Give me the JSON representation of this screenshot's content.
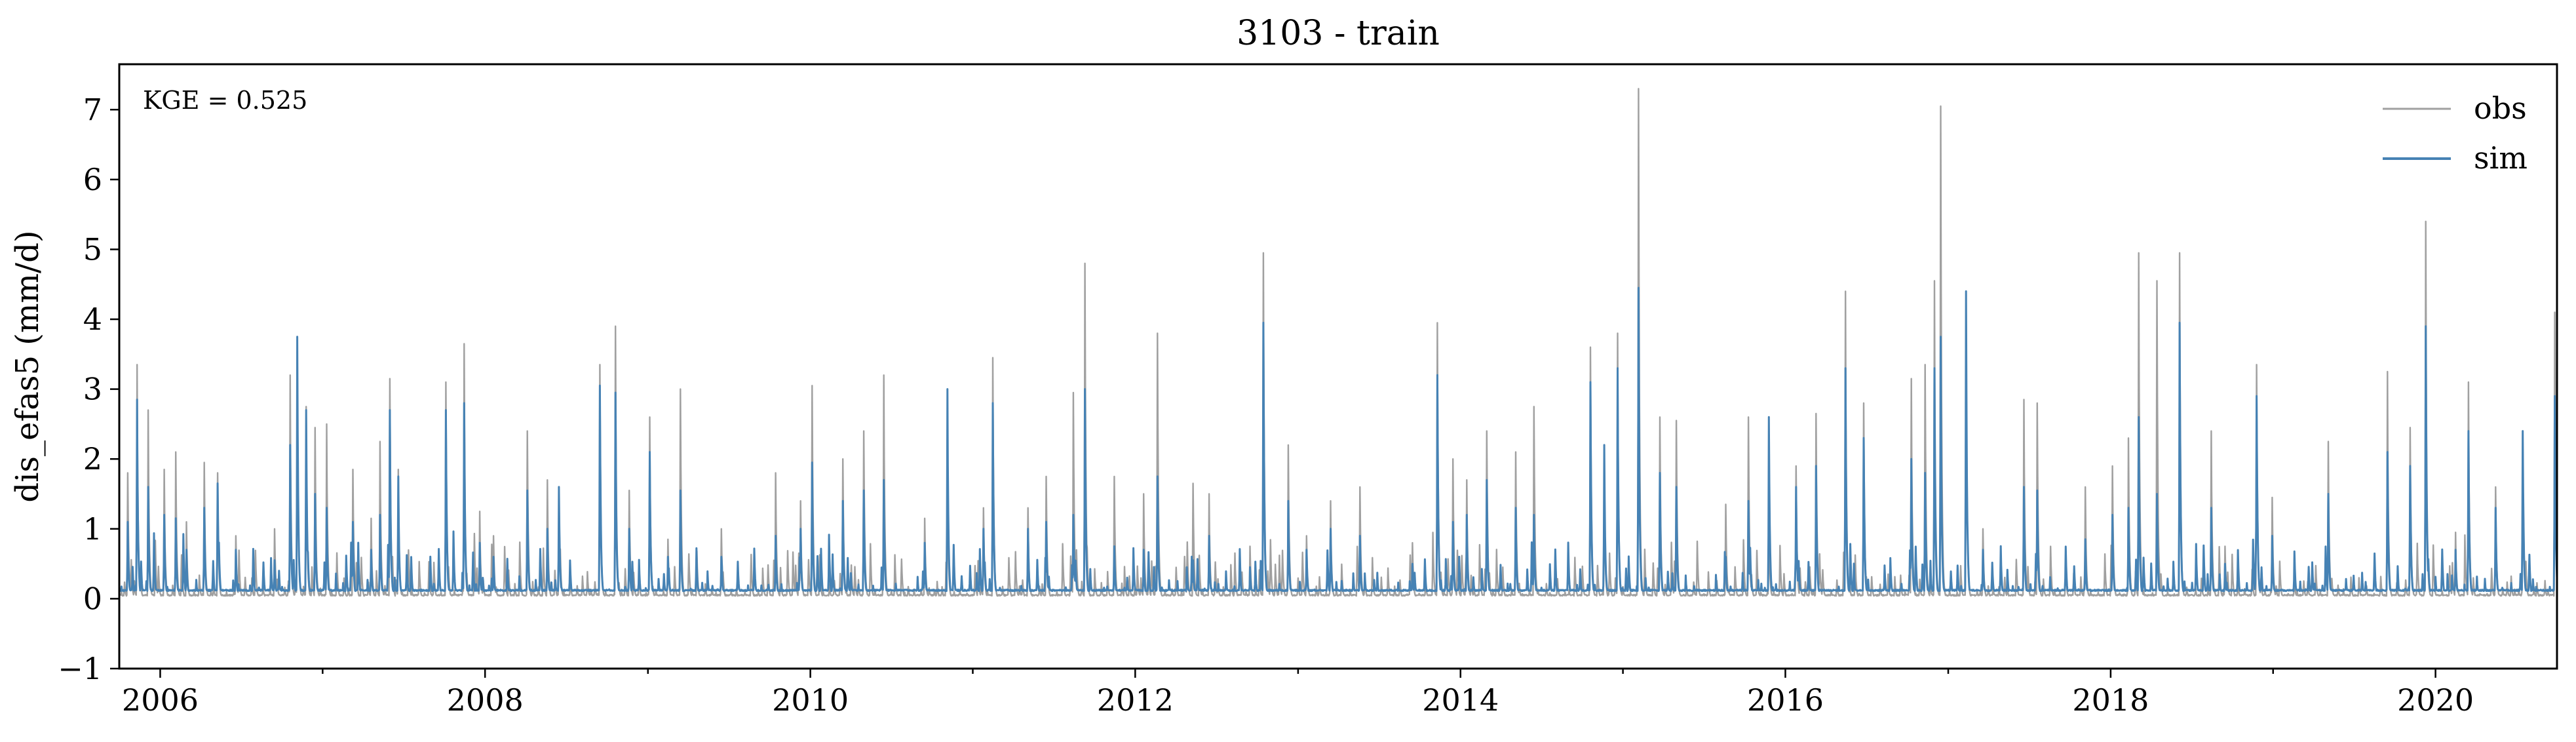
{
  "chart_data": {
    "type": "line",
    "title": "3103 - train",
    "xlabel": "",
    "ylabel": "dis_efas5 (mm/d)",
    "xlim": [
      "2005-10-01",
      "2020-09-30"
    ],
    "ylim": [
      -1,
      7.65
    ],
    "x_ticks": [
      "2006",
      "2008",
      "2010",
      "2012",
      "2014",
      "2016",
      "2018",
      "2020"
    ],
    "y_ticks": [
      -1,
      0,
      1,
      2,
      3,
      4,
      5,
      6,
      7
    ],
    "grid": false,
    "legend": "top-right",
    "annotation": "KGE = 0.525",
    "series": [
      {
        "name": "obs",
        "color": "#a0a0a0",
        "baseline": 0.05,
        "peaks": [
          [
            "2005-10-20",
            1.8
          ],
          [
            "2005-11-10",
            3.35
          ],
          [
            "2005-12-05",
            2.7
          ],
          [
            "2006-01-10",
            1.85
          ],
          [
            "2006-02-05",
            2.1
          ],
          [
            "2006-03-01",
            1.1
          ],
          [
            "2006-04-10",
            1.95
          ],
          [
            "2006-05-10",
            1.8
          ],
          [
            "2006-06-20",
            0.9
          ],
          [
            "2006-09-15",
            1.0
          ],
          [
            "2006-10-20",
            3.2
          ],
          [
            "2006-11-05",
            3.55
          ],
          [
            "2006-11-25",
            2.75
          ],
          [
            "2006-12-15",
            2.45
          ],
          [
            "2007-01-10",
            2.5
          ],
          [
            "2007-03-10",
            1.85
          ],
          [
            "2007-04-20",
            1.15
          ],
          [
            "2007-05-10",
            2.25
          ],
          [
            "2007-06-01",
            3.15
          ],
          [
            "2007-06-20",
            1.85
          ],
          [
            "2007-10-05",
            3.1
          ],
          [
            "2007-11-15",
            3.65
          ],
          [
            "2007-12-20",
            1.25
          ],
          [
            "2008-01-20",
            0.9
          ],
          [
            "2008-04-05",
            2.4
          ],
          [
            "2008-05-20",
            1.7
          ],
          [
            "2008-06-15",
            1.6
          ],
          [
            "2008-09-15",
            3.35
          ],
          [
            "2008-10-20",
            3.9
          ],
          [
            "2008-11-20",
            1.55
          ],
          [
            "2009-01-05",
            2.6
          ],
          [
            "2009-02-15",
            0.85
          ],
          [
            "2009-03-15",
            3.0
          ],
          [
            "2009-06-15",
            1.0
          ],
          [
            "2009-10-15",
            1.8
          ],
          [
            "2009-12-10",
            1.4
          ],
          [
            "2010-01-05",
            3.05
          ],
          [
            "2010-03-15",
            2.0
          ],
          [
            "2010-05-01",
            2.4
          ],
          [
            "2010-06-15",
            3.2
          ],
          [
            "2010-09-15",
            1.15
          ],
          [
            "2010-11-05",
            1.7
          ],
          [
            "2011-01-25",
            1.3
          ],
          [
            "2011-02-15",
            3.45
          ],
          [
            "2011-05-05",
            1.3
          ],
          [
            "2011-06-15",
            1.75
          ],
          [
            "2011-08-15",
            2.95
          ],
          [
            "2011-09-10",
            4.8
          ],
          [
            "2011-11-15",
            1.75
          ],
          [
            "2012-01-20",
            1.5
          ],
          [
            "2012-02-20",
            3.8
          ],
          [
            "2012-05-10",
            1.65
          ],
          [
            "2012-06-15",
            1.5
          ],
          [
            "2012-09-15",
            0.75
          ],
          [
            "2012-10-15",
            4.95
          ],
          [
            "2012-12-10",
            2.2
          ],
          [
            "2013-01-20",
            0.9
          ],
          [
            "2013-03-15",
            1.4
          ],
          [
            "2013-05-20",
            1.6
          ],
          [
            "2013-09-15",
            0.8
          ],
          [
            "2013-11-10",
            3.95
          ],
          [
            "2013-12-15",
            2.0
          ],
          [
            "2014-01-15",
            1.7
          ],
          [
            "2014-03-01",
            2.4
          ],
          [
            "2014-05-05",
            2.1
          ],
          [
            "2014-06-15",
            2.75
          ],
          [
            "2014-10-20",
            3.6
          ],
          [
            "2014-11-20",
            1.6
          ],
          [
            "2014-12-20",
            3.8
          ],
          [
            "2015-02-05",
            7.3
          ],
          [
            "2015-03-25",
            2.6
          ],
          [
            "2015-05-01",
            2.55
          ],
          [
            "2015-08-20",
            1.35
          ],
          [
            "2015-10-10",
            2.6
          ],
          [
            "2015-11-25",
            1.1
          ],
          [
            "2016-01-25",
            1.9
          ],
          [
            "2016-03-10",
            2.65
          ],
          [
            "2016-05-15",
            4.4
          ],
          [
            "2016-06-25",
            2.8
          ],
          [
            "2016-10-10",
            3.15
          ],
          [
            "2016-11-10",
            3.35
          ],
          [
            "2016-12-01",
            4.55
          ],
          [
            "2016-12-15",
            7.05
          ],
          [
            "2017-02-10",
            4.35
          ],
          [
            "2017-03-20",
            1.0
          ],
          [
            "2017-06-20",
            2.85
          ],
          [
            "2017-07-20",
            2.8
          ],
          [
            "2017-11-05",
            1.6
          ],
          [
            "2018-01-05",
            1.9
          ],
          [
            "2018-02-10",
            2.3
          ],
          [
            "2018-03-05",
            4.95
          ],
          [
            "2018-04-15",
            4.55
          ],
          [
            "2018-06-05",
            4.95
          ],
          [
            "2018-08-15",
            2.4
          ],
          [
            "2018-09-15",
            0.75
          ],
          [
            "2018-11-25",
            3.35
          ],
          [
            "2018-12-30",
            1.45
          ],
          [
            "2019-05-05",
            2.25
          ],
          [
            "2019-09-15",
            3.25
          ],
          [
            "2019-11-05",
            2.45
          ],
          [
            "2019-12-10",
            5.4
          ],
          [
            "2020-02-15",
            0.95
          ],
          [
            "2020-03-15",
            3.1
          ],
          [
            "2020-05-15",
            1.6
          ],
          [
            "2020-07-15",
            2.4
          ],
          [
            "2020-09-25",
            4.1
          ]
        ]
      },
      {
        "name": "sim",
        "color": "#4682b4",
        "baseline": 0.12,
        "peaks": [
          [
            "2005-10-20",
            1.1
          ],
          [
            "2005-11-10",
            2.85
          ],
          [
            "2005-12-05",
            1.6
          ],
          [
            "2006-01-10",
            1.2
          ],
          [
            "2006-02-05",
            1.15
          ],
          [
            "2006-03-01",
            0.7
          ],
          [
            "2006-04-10",
            1.3
          ],
          [
            "2006-05-10",
            1.65
          ],
          [
            "2006-06-20",
            0.7
          ],
          [
            "2006-09-15",
            0.55
          ],
          [
            "2006-10-20",
            2.2
          ],
          [
            "2006-11-05",
            3.75
          ],
          [
            "2006-11-25",
            2.7
          ],
          [
            "2006-12-15",
            1.5
          ],
          [
            "2007-01-10",
            1.3
          ],
          [
            "2007-03-10",
            1.1
          ],
          [
            "2007-04-20",
            0.7
          ],
          [
            "2007-05-10",
            1.2
          ],
          [
            "2007-06-01",
            2.7
          ],
          [
            "2007-06-20",
            1.75
          ],
          [
            "2007-10-05",
            2.7
          ],
          [
            "2007-11-15",
            2.8
          ],
          [
            "2007-12-20",
            0.8
          ],
          [
            "2008-01-20",
            0.6
          ],
          [
            "2008-04-05",
            1.55
          ],
          [
            "2008-05-20",
            1.0
          ],
          [
            "2008-06-15",
            1.6
          ],
          [
            "2008-09-15",
            3.05
          ],
          [
            "2008-10-20",
            2.95
          ],
          [
            "2008-11-20",
            1.0
          ],
          [
            "2009-01-05",
            2.1
          ],
          [
            "2009-02-15",
            0.6
          ],
          [
            "2009-03-15",
            1.55
          ],
          [
            "2009-06-15",
            0.6
          ],
          [
            "2009-10-15",
            0.9
          ],
          [
            "2009-12-10",
            1.0
          ],
          [
            "2010-01-05",
            1.95
          ],
          [
            "2010-03-15",
            1.4
          ],
          [
            "2010-05-01",
            1.55
          ],
          [
            "2010-06-15",
            1.7
          ],
          [
            "2010-09-15",
            0.8
          ],
          [
            "2010-11-05",
            3.0
          ],
          [
            "2011-01-25",
            1.0
          ],
          [
            "2011-02-15",
            2.8
          ],
          [
            "2011-05-05",
            1.0
          ],
          [
            "2011-06-15",
            1.1
          ],
          [
            "2011-08-15",
            1.2
          ],
          [
            "2011-09-10",
            3.0
          ],
          [
            "2011-11-15",
            0.75
          ],
          [
            "2012-01-20",
            0.7
          ],
          [
            "2012-02-20",
            1.75
          ],
          [
            "2012-05-10",
            0.55
          ],
          [
            "2012-06-15",
            0.9
          ],
          [
            "2012-09-15",
            0.45
          ],
          [
            "2012-10-15",
            3.95
          ],
          [
            "2012-12-10",
            1.4
          ],
          [
            "2013-01-20",
            0.7
          ],
          [
            "2013-03-15",
            1.0
          ],
          [
            "2013-05-20",
            0.9
          ],
          [
            "2013-09-15",
            0.5
          ],
          [
            "2013-11-10",
            3.2
          ],
          [
            "2013-12-15",
            1.1
          ],
          [
            "2014-01-15",
            1.2
          ],
          [
            "2014-03-01",
            1.7
          ],
          [
            "2014-05-05",
            1.3
          ],
          [
            "2014-06-15",
            1.2
          ],
          [
            "2014-10-20",
            3.1
          ],
          [
            "2014-11-20",
            2.2
          ],
          [
            "2014-12-20",
            3.3
          ],
          [
            "2015-02-05",
            4.45
          ],
          [
            "2015-03-25",
            1.8
          ],
          [
            "2015-05-01",
            1.6
          ],
          [
            "2015-08-20",
            0.6
          ],
          [
            "2015-10-10",
            1.4
          ],
          [
            "2015-11-25",
            2.6
          ],
          [
            "2016-01-25",
            1.6
          ],
          [
            "2016-03-10",
            1.9
          ],
          [
            "2016-05-15",
            3.3
          ],
          [
            "2016-06-25",
            2.3
          ],
          [
            "2016-10-10",
            2.0
          ],
          [
            "2016-11-10",
            1.8
          ],
          [
            "2016-12-01",
            3.3
          ],
          [
            "2016-12-15",
            3.75
          ],
          [
            "2017-02-10",
            4.4
          ],
          [
            "2017-03-20",
            0.7
          ],
          [
            "2017-06-20",
            1.6
          ],
          [
            "2017-07-20",
            1.55
          ],
          [
            "2017-11-05",
            0.85
          ],
          [
            "2018-01-05",
            1.2
          ],
          [
            "2018-02-10",
            1.3
          ],
          [
            "2018-03-05",
            2.6
          ],
          [
            "2018-04-15",
            1.5
          ],
          [
            "2018-06-05",
            3.95
          ],
          [
            "2018-08-15",
            1.3
          ],
          [
            "2018-09-15",
            0.5
          ],
          [
            "2018-11-25",
            2.9
          ],
          [
            "2018-12-30",
            0.9
          ],
          [
            "2019-05-05",
            1.5
          ],
          [
            "2019-09-15",
            2.1
          ],
          [
            "2019-11-05",
            1.9
          ],
          [
            "2019-12-10",
            3.9
          ],
          [
            "2020-02-15",
            0.7
          ],
          [
            "2020-03-15",
            2.4
          ],
          [
            "2020-05-15",
            1.3
          ],
          [
            "2020-07-15",
            2.4
          ],
          [
            "2020-09-25",
            2.9
          ]
        ]
      }
    ]
  }
}
